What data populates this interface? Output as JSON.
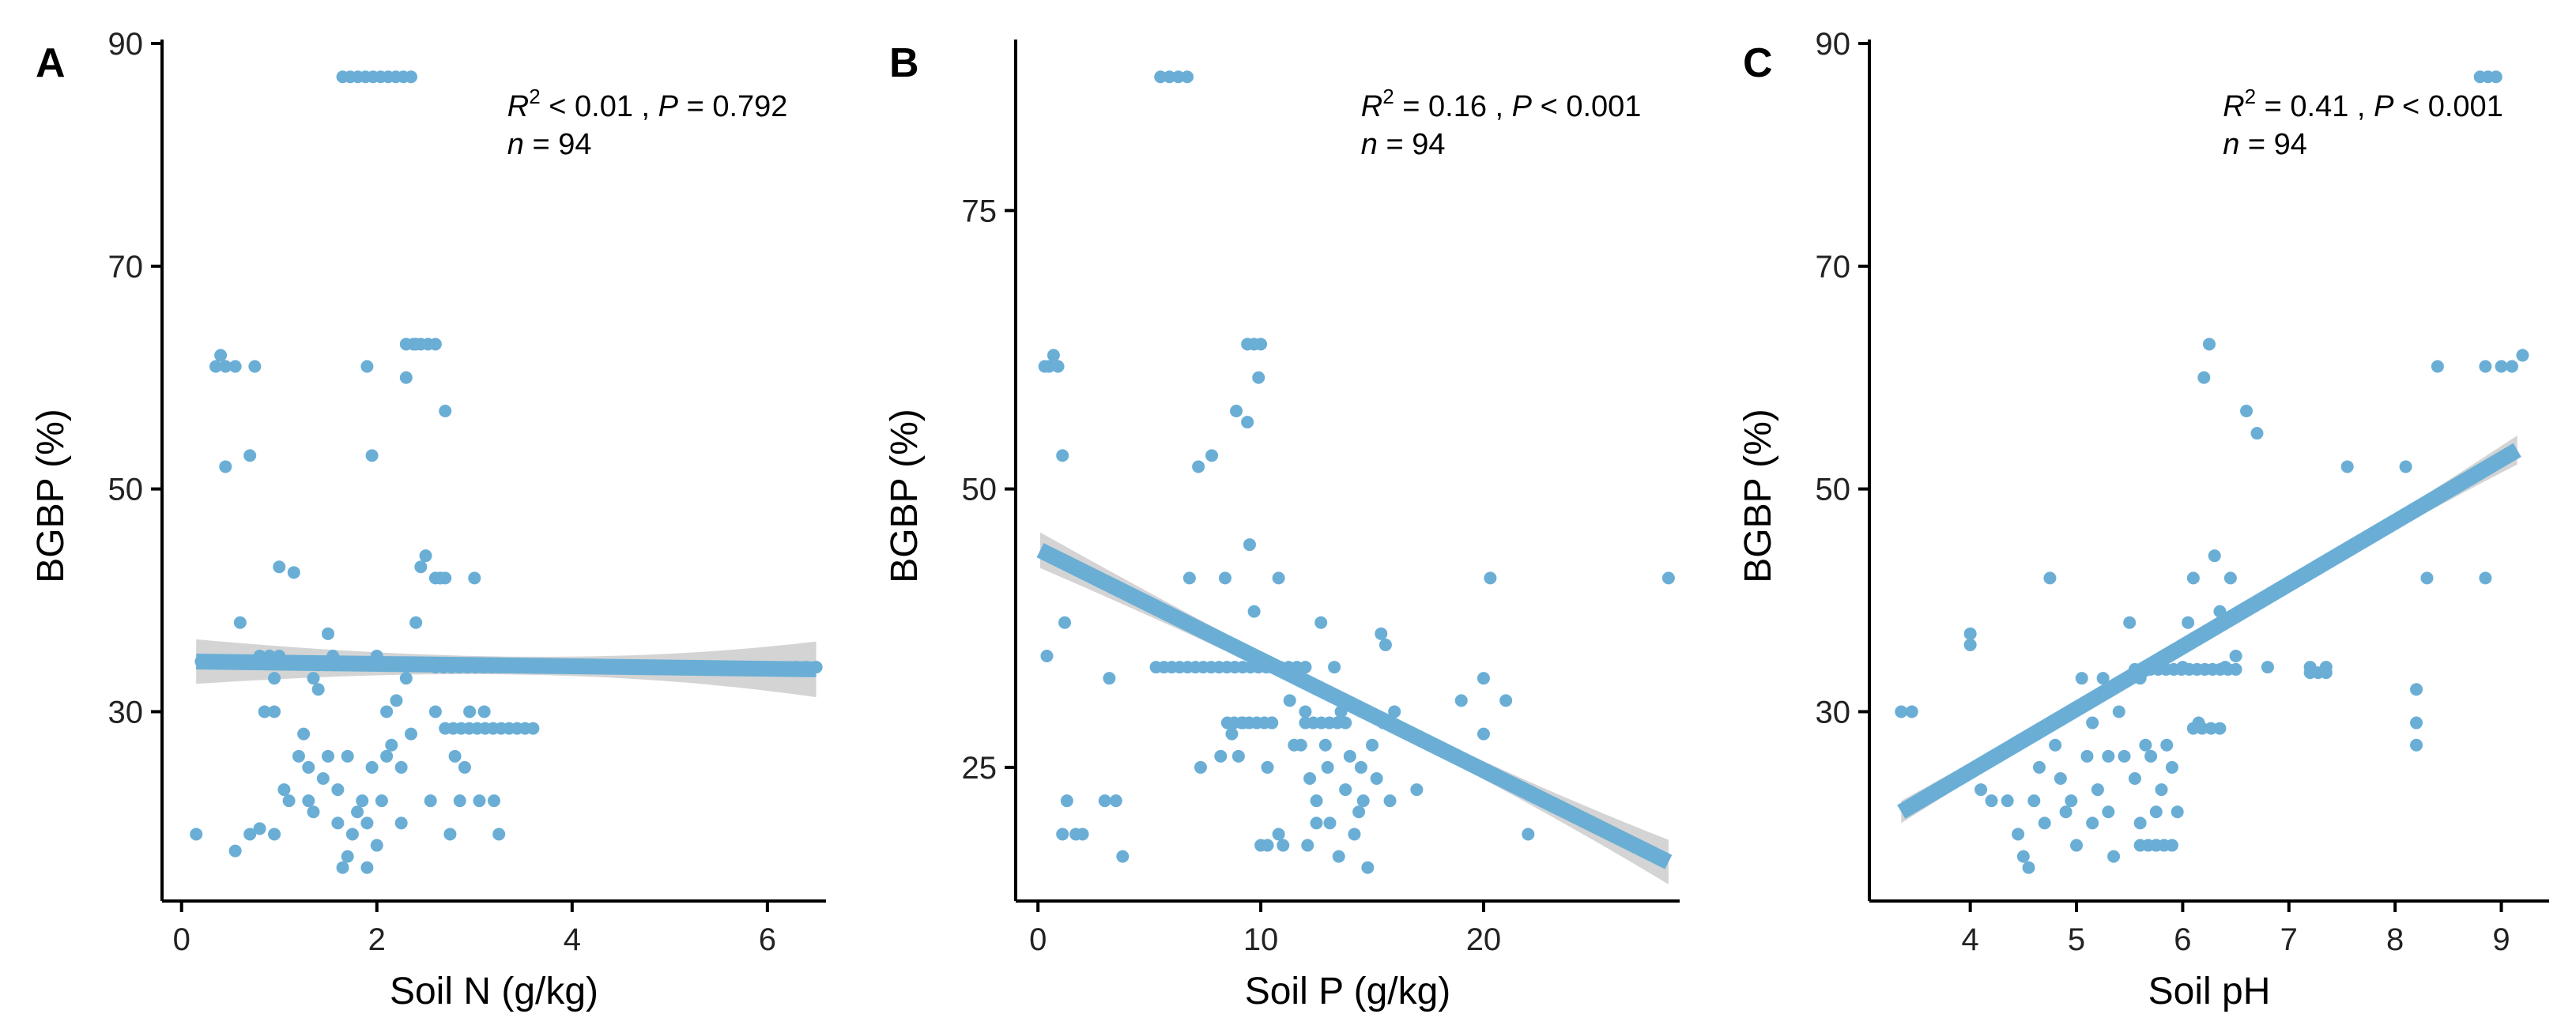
{
  "chart_data": [
    {
      "type": "scatter",
      "panel": "A",
      "xlabel": "Soil N (g/kg)",
      "ylabel": "BGBP (%)",
      "xlim": [
        -0.2,
        6.6
      ],
      "ylim": [
        13,
        90
      ],
      "xticks": [
        0,
        2,
        4,
        6
      ],
      "yticks": [
        30,
        50,
        70,
        90
      ],
      "stats": {
        "r2_text": " < 0.01 , ",
        "p_text": " = 0.792",
        "n_text": " = 94"
      },
      "fit": {
        "line": [
          [
            0.15,
            34.5
          ],
          [
            6.5,
            33.8
          ]
        ],
        "ci_halfwidth_ends": [
          2.0,
          2.5
        ],
        "ci_halfwidth_mid": 0.8
      },
      "point_color": "#6aaed6",
      "points": [
        [
          0.15,
          19
        ],
        [
          0.35,
          61
        ],
        [
          0.45,
          61
        ],
        [
          0.55,
          61
        ],
        [
          0.4,
          62
        ],
        [
          0.45,
          52
        ],
        [
          0.75,
          61
        ],
        [
          0.6,
          38
        ],
        [
          0.7,
          53
        ],
        [
          0.55,
          17.5
        ],
        [
          0.7,
          19
        ],
        [
          0.8,
          19.5
        ],
        [
          0.95,
          19
        ],
        [
          0.85,
          30
        ],
        [
          0.95,
          30
        ],
        [
          0.9,
          35
        ],
        [
          0.95,
          33
        ],
        [
          1.0,
          43
        ],
        [
          1.15,
          42.5
        ],
        [
          1.05,
          23
        ],
        [
          1.1,
          22
        ],
        [
          1.2,
          26
        ],
        [
          1.25,
          28
        ],
        [
          1.3,
          25
        ],
        [
          1.3,
          22
        ],
        [
          1.35,
          33
        ],
        [
          1.4,
          32
        ],
        [
          1.35,
          21
        ],
        [
          1.45,
          24
        ],
        [
          1.5,
          26
        ],
        [
          1.5,
          37
        ],
        [
          1.55,
          35
        ],
        [
          1.6,
          23
        ],
        [
          1.6,
          20
        ],
        [
          1.65,
          16
        ],
        [
          1.7,
          17
        ],
        [
          1.75,
          19
        ],
        [
          1.8,
          21
        ],
        [
          1.7,
          26
        ],
        [
          1.85,
          22
        ],
        [
          1.9,
          20
        ],
        [
          1.95,
          25
        ],
        [
          1.9,
          16
        ],
        [
          2.0,
          18
        ],
        [
          2.05,
          22
        ],
        [
          2.1,
          30
        ],
        [
          2.15,
          27
        ],
        [
          2.2,
          31
        ],
        [
          2.25,
          25
        ],
        [
          2.3,
          33
        ],
        [
          2.35,
          28
        ],
        [
          2.3,
          60
        ],
        [
          2.4,
          63
        ],
        [
          2.45,
          43
        ],
        [
          2.4,
          38
        ],
        [
          2.5,
          44
        ],
        [
          2.55,
          22
        ],
        [
          2.6,
          30
        ],
        [
          2.65,
          42
        ],
        [
          2.7,
          57
        ],
        [
          2.75,
          19
        ],
        [
          2.8,
          26
        ],
        [
          2.85,
          22
        ],
        [
          2.9,
          25
        ],
        [
          2.95,
          30
        ],
        [
          3.0,
          42
        ],
        [
          3.05,
          22
        ],
        [
          3.1,
          30
        ],
        [
          3.2,
          22
        ],
        [
          3.25,
          19
        ],
        [
          1.9,
          61
        ],
        [
          1.95,
          53
        ],
        [
          2.0,
          35
        ],
        [
          2.1,
          26
        ],
        [
          2.25,
          20
        ],
        [
          4.8,
          34
        ]
      ],
      "dot_rows": [
        {
          "y": 87,
          "x0": 1.65,
          "x1": 2.35
        },
        {
          "y": 63,
          "x0": 2.3,
          "x1": 2.6
        },
        {
          "y": 34.5,
          "x0": 0.2,
          "x1": 0.65
        },
        {
          "y": 34.2,
          "x0": 1.4,
          "x1": 2.3
        },
        {
          "y": 34,
          "x0": 2.6,
          "x1": 3.5
        },
        {
          "y": 34,
          "x0": 3.55,
          "x1": 4.0
        },
        {
          "y": 34,
          "x0": 4.0,
          "x1": 4.5
        },
        {
          "y": 34,
          "x0": 5.1,
          "x1": 5.7
        },
        {
          "y": 34,
          "x0": 6.3,
          "x1": 6.5
        },
        {
          "y": 28.5,
          "x0": 2.7,
          "x1": 3.6
        },
        {
          "y": 35,
          "x0": 0.8,
          "x1": 1.0
        },
        {
          "y": 42,
          "x0": 2.6,
          "x1": 2.7
        }
      ]
    },
    {
      "type": "scatter",
      "panel": "B",
      "xlabel": "Soil P (g/kg)",
      "ylabel": "BGBP (%)",
      "xlim": [
        -1.0,
        28.8
      ],
      "ylim": [
        13,
        90
      ],
      "xticks": [
        0,
        10,
        20
      ],
      "yticks": [
        25,
        50,
        75
      ],
      "stats": {
        "r2_text": " = 0.16 , ",
        "p_text": " < 0.001",
        "n_text": " = 94"
      },
      "fit": {
        "line": [
          [
            0.1,
            44.5
          ],
          [
            28.3,
            16.5
          ]
        ],
        "ci_halfwidth_ends": [
          1.6,
          2.0
        ],
        "ci_halfwidth_mid": 0.6
      },
      "point_color": "#6aaed6",
      "points": [
        [
          0.3,
          61
        ],
        [
          0.5,
          61
        ],
        [
          0.7,
          62
        ],
        [
          0.9,
          61
        ],
        [
          0.4,
          35
        ],
        [
          1.1,
          53
        ],
        [
          1.2,
          38
        ],
        [
          1.1,
          19
        ],
        [
          1.3,
          22
        ],
        [
          1.7,
          19
        ],
        [
          2.0,
          19
        ],
        [
          3.0,
          22
        ],
        [
          3.2,
          33
        ],
        [
          3.5,
          22
        ],
        [
          3.8,
          17
        ],
        [
          6.8,
          42
        ],
        [
          7.2,
          52
        ],
        [
          7.3,
          25
        ],
        [
          7.8,
          53
        ],
        [
          8.2,
          26
        ],
        [
          8.4,
          42
        ],
        [
          8.5,
          29
        ],
        [
          8.7,
          28
        ],
        [
          8.9,
          57
        ],
        [
          9.0,
          26
        ],
        [
          9.2,
          29
        ],
        [
          9.4,
          56
        ],
        [
          9.5,
          45
        ],
        [
          9.7,
          39
        ],
        [
          9.9,
          60
        ],
        [
          10.0,
          18
        ],
        [
          10.3,
          25
        ],
        [
          10.5,
          29
        ],
        [
          10.8,
          42
        ],
        [
          10.8,
          19
        ],
        [
          11.0,
          18
        ],
        [
          11.3,
          31
        ],
        [
          11.6,
          33
        ],
        [
          11.8,
          27
        ],
        [
          12.0,
          30
        ],
        [
          12.2,
          24
        ],
        [
          12.5,
          22
        ],
        [
          12.7,
          38
        ],
        [
          12.9,
          27
        ],
        [
          13.1,
          20
        ],
        [
          13.3,
          34
        ],
        [
          13.5,
          17
        ],
        [
          13.6,
          30
        ],
        [
          13.8,
          23
        ],
        [
          14.0,
          26
        ],
        [
          14.2,
          19
        ],
        [
          14.4,
          21
        ],
        [
          14.6,
          22
        ],
        [
          14.8,
          16
        ],
        [
          15.0,
          27
        ],
        [
          15.2,
          24
        ],
        [
          15.4,
          37
        ],
        [
          15.6,
          36
        ],
        [
          15.8,
          22
        ],
        [
          16.0,
          30
        ],
        [
          17.0,
          23
        ],
        [
          19.0,
          31
        ],
        [
          20.0,
          28
        ],
        [
          20.0,
          33
        ],
        [
          20.3,
          42
        ],
        [
          21.0,
          31
        ],
        [
          22.0,
          19
        ],
        [
          28.3,
          42
        ],
        [
          12.5,
          20
        ],
        [
          13.0,
          25
        ],
        [
          14.5,
          25
        ],
        [
          15.5,
          29
        ],
        [
          11.5,
          27
        ],
        [
          10.3,
          18
        ],
        [
          12.1,
          18
        ]
      ],
      "dot_rows": [
        {
          "y": 87,
          "x0": 5.5,
          "x1": 6.7
        },
        {
          "y": 63,
          "x0": 9.4,
          "x1": 10.0
        },
        {
          "y": 34,
          "x0": 5.3,
          "x1": 10.6
        },
        {
          "y": 29,
          "x0": 8.8,
          "x1": 10.5
        },
        {
          "y": 34,
          "x0": 10.5,
          "x1": 12.0
        },
        {
          "y": 29,
          "x0": 12.0,
          "x1": 13.8
        }
      ]
    },
    {
      "type": "scatter",
      "panel": "C",
      "xlabel": "Soil pH",
      "ylabel": "BGBP (%)",
      "xlim": [
        3.05,
        9.45
      ],
      "ylim": [
        13,
        90
      ],
      "xticks": [
        4,
        5,
        6,
        7,
        8,
        9
      ],
      "yticks": [
        30,
        50,
        70,
        90
      ],
      "stats": {
        "r2_text": " = 0.41 , ",
        "p_text": " < 0.001",
        "n_text": " = 94"
      },
      "fit": {
        "line": [
          [
            3.35,
            21
          ],
          [
            9.15,
            53.5
          ]
        ],
        "ci_halfwidth_ends": [
          1.0,
          1.3
        ],
        "ci_halfwidth_mid": 0.4
      },
      "point_color": "#6aaed6",
      "points": [
        [
          3.35,
          30
        ],
        [
          3.45,
          30
        ],
        [
          4.0,
          36
        ],
        [
          4.0,
          37
        ],
        [
          4.1,
          23
        ],
        [
          4.2,
          22
        ],
        [
          4.35,
          22
        ],
        [
          4.45,
          19
        ],
        [
          4.5,
          17
        ],
        [
          4.55,
          16
        ],
        [
          4.6,
          22
        ],
        [
          4.65,
          25
        ],
        [
          4.7,
          20
        ],
        [
          4.75,
          42
        ],
        [
          4.8,
          27
        ],
        [
          4.85,
          24
        ],
        [
          4.9,
          21
        ],
        [
          4.95,
          22
        ],
        [
          5.0,
          18
        ],
        [
          5.05,
          33
        ],
        [
          5.1,
          26
        ],
        [
          5.15,
          20
        ],
        [
          5.2,
          23
        ],
        [
          5.25,
          33
        ],
        [
          5.3,
          21
        ],
        [
          5.35,
          17
        ],
        [
          5.4,
          30
        ],
        [
          5.45,
          26
        ],
        [
          5.5,
          38
        ],
        [
          5.55,
          24
        ],
        [
          5.6,
          20
        ],
        [
          5.65,
          27
        ],
        [
          5.7,
          26
        ],
        [
          5.75,
          21
        ],
        [
          5.8,
          23
        ],
        [
          5.85,
          27
        ],
        [
          5.9,
          25
        ],
        [
          6.0,
          34
        ],
        [
          6.05,
          38
        ],
        [
          6.1,
          42
        ],
        [
          6.15,
          29
        ],
        [
          6.2,
          60
        ],
        [
          6.25,
          63
        ],
        [
          6.3,
          44
        ],
        [
          6.35,
          39
        ],
        [
          6.4,
          34
        ],
        [
          6.45,
          42
        ],
        [
          6.5,
          35
        ],
        [
          6.6,
          57
        ],
        [
          6.7,
          55
        ],
        [
          6.8,
          34
        ],
        [
          7.2,
          34
        ],
        [
          7.35,
          34
        ],
        [
          7.55,
          52
        ],
        [
          8.1,
          52
        ],
        [
          8.2,
          32
        ],
        [
          8.2,
          29
        ],
        [
          8.2,
          27
        ],
        [
          8.3,
          42
        ],
        [
          8.4,
          61
        ],
        [
          8.85,
          61
        ],
        [
          8.85,
          42
        ],
        [
          9.0,
          61
        ],
        [
          9.1,
          61
        ],
        [
          9.2,
          62
        ],
        [
          5.6,
          33
        ],
        [
          5.75,
          18
        ],
        [
          5.15,
          29
        ],
        [
          5.95,
          21
        ],
        [
          5.3,
          26
        ]
      ],
      "dot_rows": [
        {
          "y": 87,
          "x0": 8.8,
          "x1": 8.95
        },
        {
          "y": 33.8,
          "x0": 5.55,
          "x1": 6.5
        },
        {
          "y": 33.5,
          "x0": 7.2,
          "x1": 7.35
        },
        {
          "y": 28.5,
          "x0": 6.1,
          "x1": 6.35
        },
        {
          "y": 18,
          "x0": 5.6,
          "x1": 5.9
        }
      ]
    }
  ]
}
